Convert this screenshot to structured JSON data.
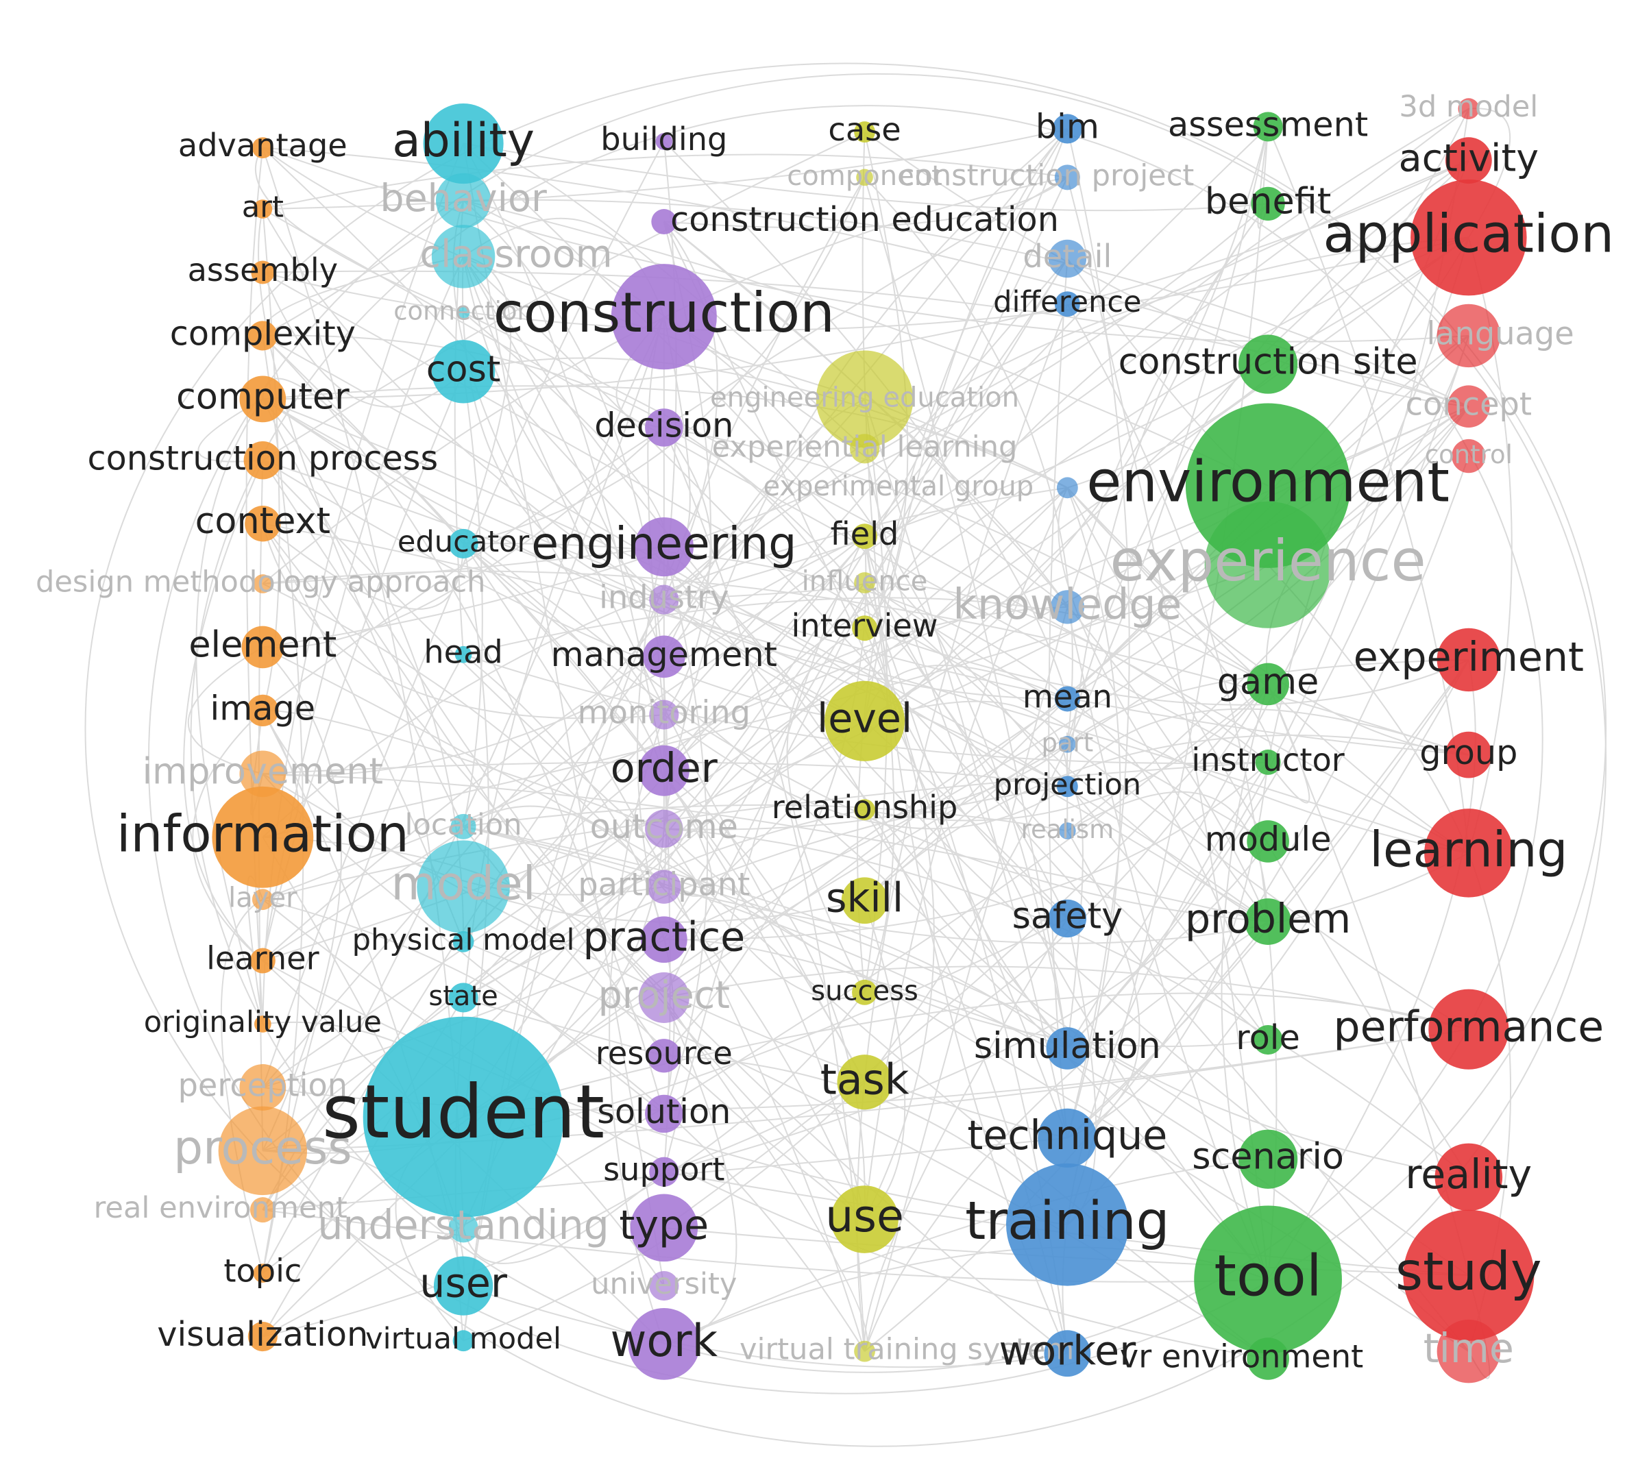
{
  "clusters": [
    {
      "color": "#f39a3a",
      "nodes": [
        "advantage",
        "art",
        "assembly",
        "complexity",
        "computer",
        "construction process",
        "context",
        "design methodology approach",
        "element",
        "image",
        "improvement",
        "information",
        "layer",
        "learner",
        "originality value",
        "perception",
        "process",
        "real environment",
        "topic",
        "visualization"
      ]
    },
    {
      "color": "#3ec4d6",
      "nodes": [
        "ability",
        "behavior",
        "classroom",
        "connection",
        "cost",
        "educator",
        "head",
        "location",
        "model",
        "physical model",
        "state",
        "student",
        "understanding",
        "user",
        "virtual model"
      ]
    },
    {
      "color": "#a77bd6",
      "nodes": [
        "building",
        "construction education",
        "construction",
        "decision",
        "engineering",
        "industry",
        "management",
        "monitoring",
        "order",
        "outcome",
        "participant",
        "practice",
        "project",
        "resource",
        "solution",
        "support",
        "type",
        "university",
        "work"
      ]
    },
    {
      "color": "#c9cc33",
      "nodes": [
        "case",
        "component",
        "engineering education",
        "experiential learning",
        "field",
        "influence",
        "interview",
        "level",
        "relationship",
        "skill",
        "success",
        "task",
        "use",
        "virtual training system"
      ]
    },
    {
      "color": "#4a90d4",
      "nodes": [
        "bim",
        "construction project",
        "detail",
        "difference",
        "experimental group",
        "knowledge",
        "mean",
        "part",
        "projection",
        "realism",
        "safety",
        "simulation",
        "technique",
        "training",
        "worker"
      ]
    },
    {
      "color": "#3fb84a",
      "nodes": [
        "assessment",
        "benefit",
        "construction site",
        "environment",
        "experience",
        "game",
        "instructor",
        "module",
        "problem",
        "role",
        "scenario",
        "tool",
        "vr environment"
      ]
    },
    {
      "color": "#e5383b",
      "nodes": [
        "3d model",
        "activity",
        "application",
        "language",
        "concept",
        "control",
        "experiment",
        "group",
        "learning",
        "performance",
        "reality",
        "study",
        "time"
      ]
    }
  ]
}
